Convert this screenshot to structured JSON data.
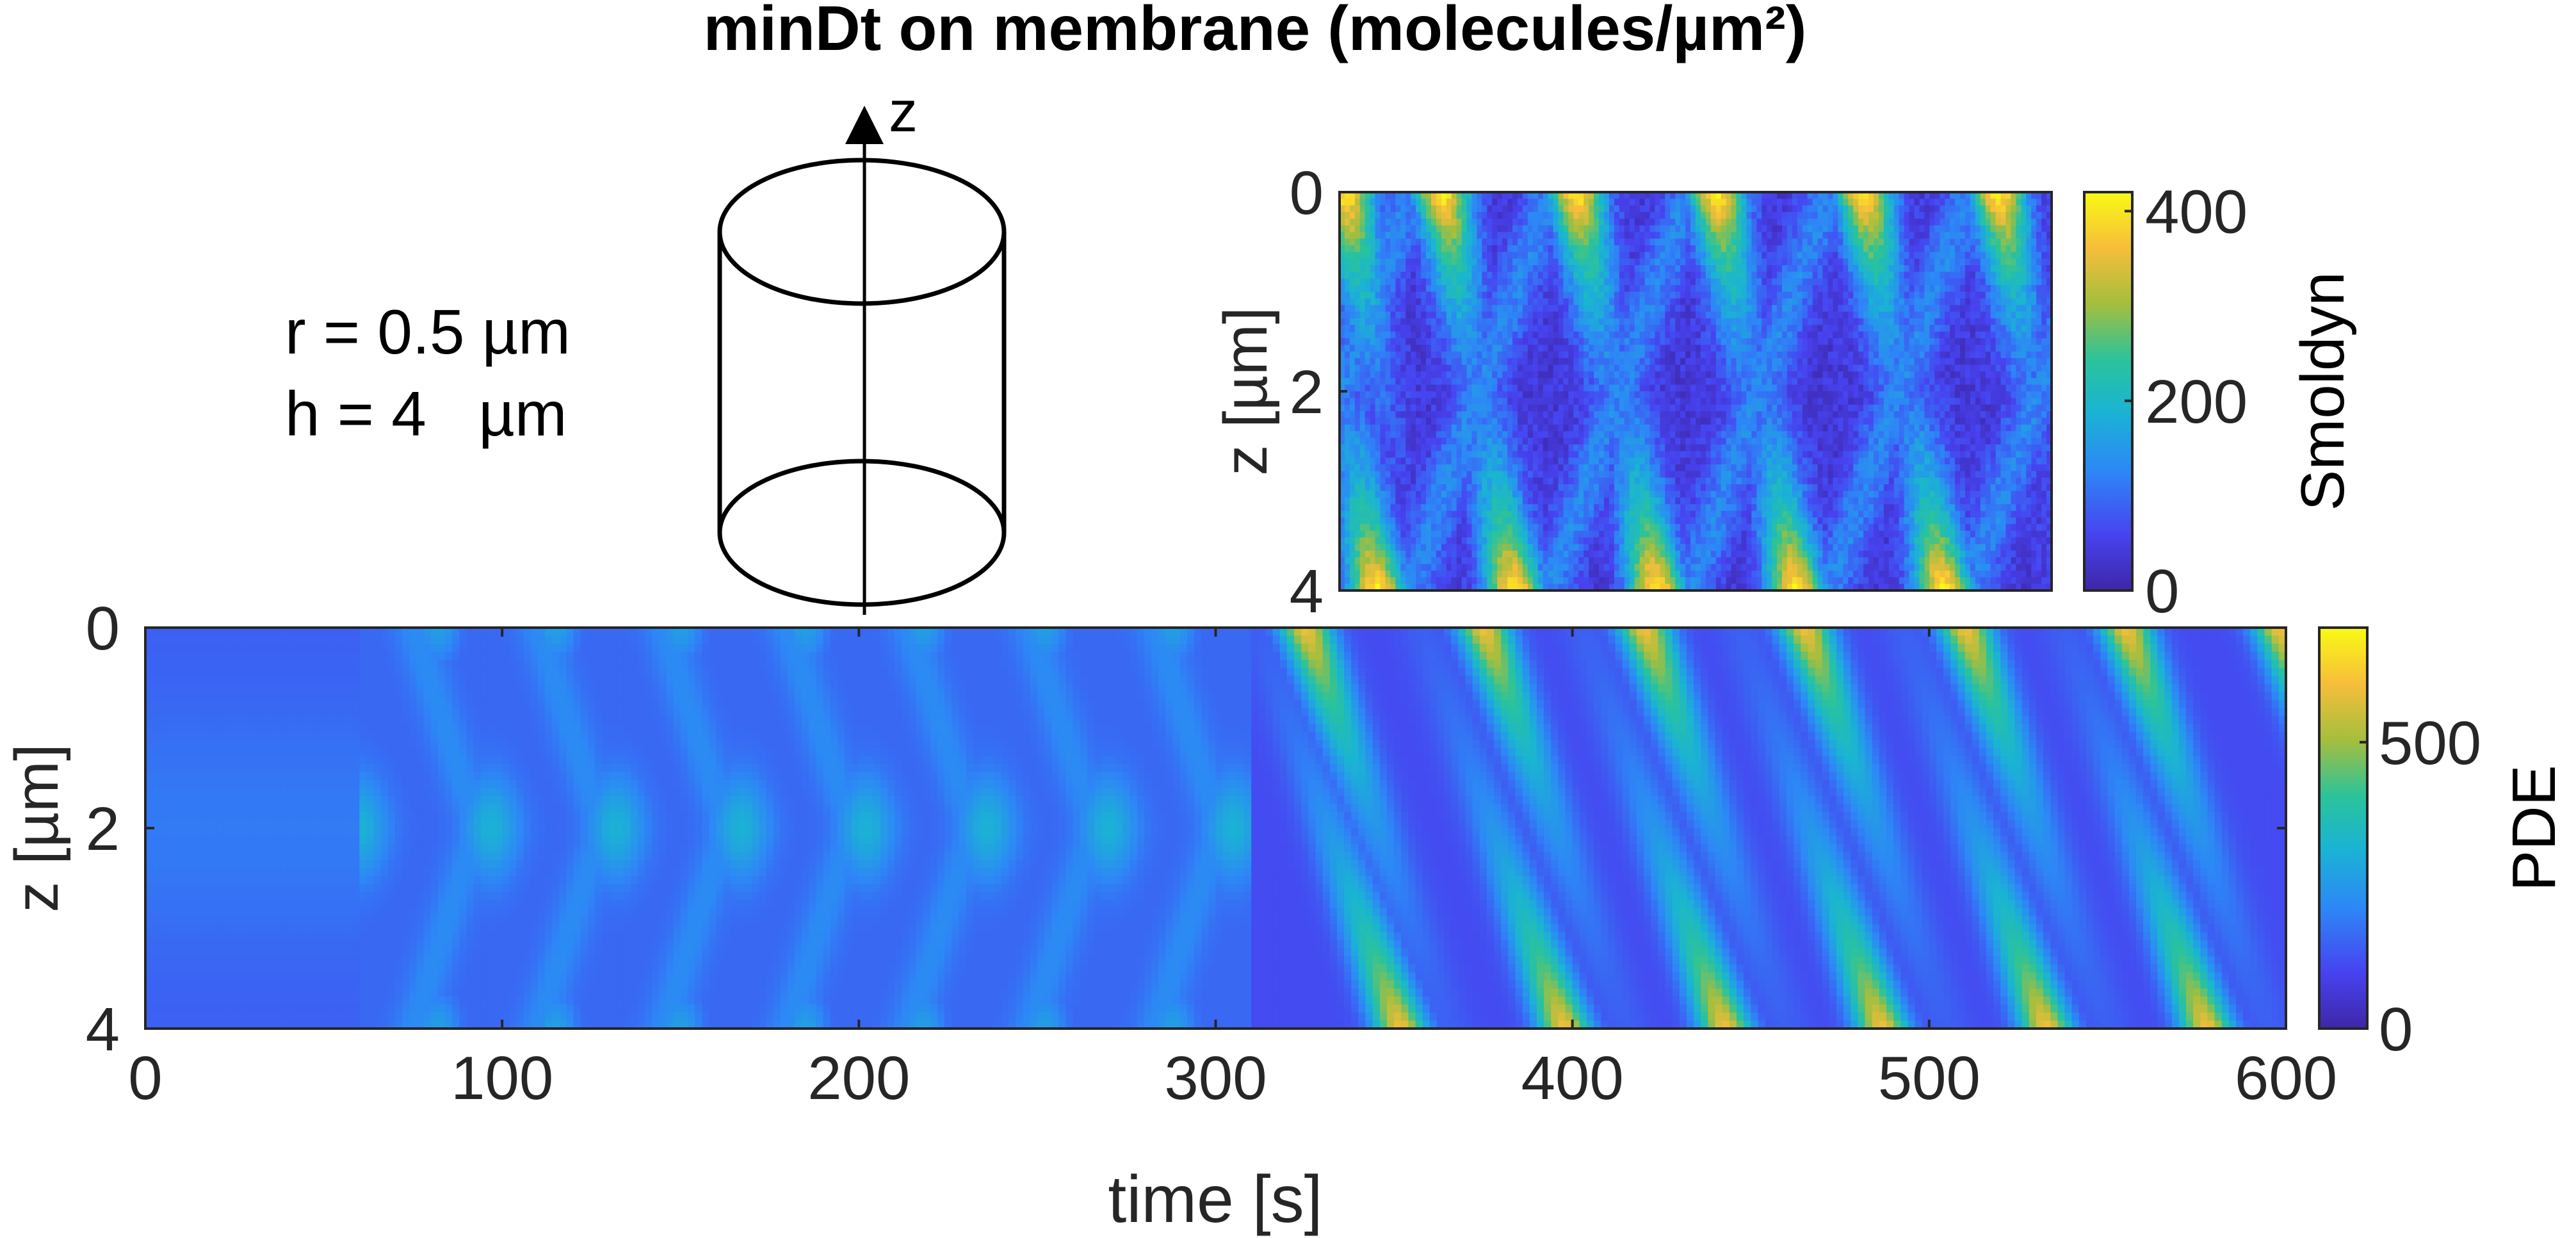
{
  "figure": {
    "title": "minDt on membrane (molecules/µm²)"
  },
  "geometry_note": {
    "radius_label": "r = 0.5 µm",
    "height_label": "h = 4   µm",
    "axis_label": "z"
  },
  "colormap": [
    "#3e26a8",
    "#4743f0",
    "#2d87f6",
    "#1ab4d3",
    "#2bc39a",
    "#a5be3e",
    "#f6be3a",
    "#f9fa14"
  ],
  "chart_data": [
    {
      "id": "smoldyn",
      "type": "heatmap",
      "title": "",
      "xlabel": "",
      "ylabel": "z [µm]",
      "yticks": [
        "0",
        "2",
        "4"
      ],
      "ylim": [
        0,
        4
      ],
      "y_reversed": true,
      "colorbar": {
        "label": "Smoldyn",
        "ticks": [
          "0",
          "200",
          "400"
        ],
        "range": [
          0,
          420
        ]
      },
      "pattern": {
        "kind": "oscillating diagonal bands",
        "x_range_s": [
          0,
          265
        ],
        "period_s": 52,
        "peak_top_times_s": [
          2,
          38,
          88,
          140,
          195,
          245
        ],
        "peak_bottom_times_s": [
          14,
          65,
          118,
          170,
          225
        ],
        "peak_value": 420,
        "background_value": 30
      }
    },
    {
      "id": "pde",
      "type": "heatmap",
      "title": "",
      "xlabel": "time [s]",
      "ylabel": "z [µm]",
      "xticks": [
        "0",
        "100",
        "200",
        "300",
        "400",
        "500",
        "600"
      ],
      "xlim": [
        0,
        600
      ],
      "yticks": [
        "0",
        "2",
        "4"
      ],
      "ylim": [
        0,
        4
      ],
      "y_reversed": true,
      "colorbar": {
        "label": "PDE",
        "ticks": [
          "0",
          "500"
        ],
        "range": [
          0,
          700
        ]
      },
      "pattern": {
        "phase1": {
          "kind": "symmetric pole-to-midcell",
          "x_range_s": [
            0,
            310
          ],
          "midcell_peak_times_s": [
            60,
            97,
            132,
            167,
            202,
            236,
            270,
            305
          ],
          "pole_times_s": [
            82,
            115,
            150,
            185,
            218,
            252,
            288
          ]
        },
        "phase2": {
          "kind": "pole-to-pole traveling",
          "x_range_s": [
            310,
            600
          ],
          "top_pole_times_s": [
            325,
            375,
            420,
            465,
            510,
            555,
            598
          ],
          "bottom_pole_times_s": [
            352,
            398,
            443,
            487,
            533,
            578
          ]
        }
      }
    }
  ]
}
